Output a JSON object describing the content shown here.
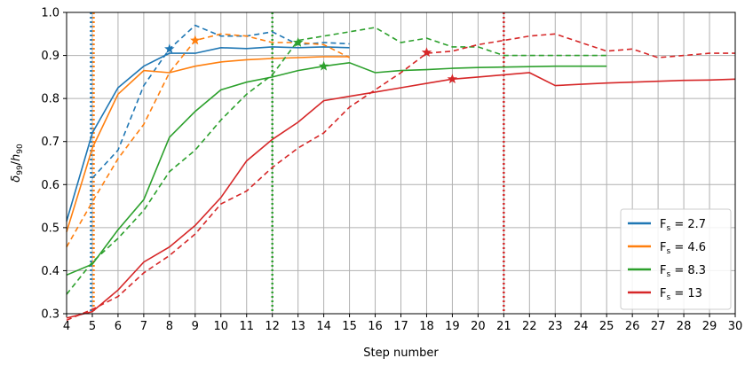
{
  "chart_data": {
    "type": "line",
    "xlabel": "Step number",
    "ylabel_main": "δ",
    "ylabel_sub": "99",
    "ylabel_sep": "/",
    "ylabel_main2": "h",
    "ylabel_sub2": "90",
    "xlim": [
      4,
      30
    ],
    "ylim": [
      0.3,
      1.0
    ],
    "xticks": [
      4,
      5,
      6,
      7,
      8,
      9,
      10,
      11,
      12,
      13,
      14,
      15,
      16,
      17,
      18,
      19,
      20,
      21,
      22,
      23,
      24,
      25,
      26,
      27,
      28,
      29,
      30
    ],
    "yticks": [
      0.3,
      0.4,
      0.5,
      0.6,
      0.7,
      0.8,
      0.9,
      1.0
    ],
    "ytick_labels": [
      "0.3",
      "0.4",
      "0.5",
      "0.6",
      "0.7",
      "0.8",
      "0.9",
      "1.0"
    ],
    "grid": true,
    "legend_position": "lower-right",
    "series": [
      {
        "name": "F_s = 2.7",
        "legend_label": {
          "main": "F",
          "sub": "s",
          "rest": " = 2.7"
        },
        "color": "#1f77b4",
        "solid": {
          "x": [
            4,
            5,
            6,
            7,
            8,
            9,
            10,
            11,
            12,
            13,
            14,
            15
          ],
          "y": [
            0.515,
            0.72,
            0.825,
            0.875,
            0.905,
            0.905,
            0.918,
            0.916,
            0.92,
            0.918,
            0.92,
            0.918
          ]
        },
        "dashed": {
          "x": [
            5,
            6,
            7,
            8,
            9,
            10,
            11,
            12,
            13,
            14,
            15
          ],
          "y": [
            0.615,
            0.68,
            0.83,
            0.915,
            0.97,
            0.945,
            0.945,
            0.955,
            0.925,
            0.93,
            0.927
          ]
        },
        "star": {
          "x": 8,
          "y": 0.915
        },
        "vline": 5
      },
      {
        "name": "F_s = 4.6",
        "legend_label": {
          "main": "F",
          "sub": "s",
          "rest": " = 4.6"
        },
        "color": "#ff7f0e",
        "solid": {
          "x": [
            4,
            5,
            6,
            7,
            8,
            9,
            10,
            11,
            12,
            13,
            14,
            15
          ],
          "y": [
            0.49,
            0.685,
            0.81,
            0.865,
            0.86,
            0.875,
            0.885,
            0.89,
            0.893,
            0.895,
            0.897,
            0.897
          ]
        },
        "dashed": {
          "x": [
            4,
            5,
            6,
            7,
            8,
            9,
            10,
            11,
            12,
            13,
            14,
            15
          ],
          "y": [
            0.455,
            0.56,
            0.66,
            0.74,
            0.86,
            0.935,
            0.95,
            0.945,
            0.93,
            0.93,
            0.925,
            0.895
          ]
        },
        "star": {
          "x": 9,
          "y": 0.935
        },
        "vline": 5
      },
      {
        "name": "F_s = 8.3",
        "legend_label": {
          "main": "F",
          "sub": "s",
          "rest": " = 8.3"
        },
        "color": "#2ca02c",
        "solid": {
          "x": [
            4,
            5,
            6,
            7,
            8,
            9,
            10,
            11,
            12,
            13,
            14,
            15,
            16,
            17,
            18,
            19,
            20,
            21,
            22,
            23,
            24,
            25
          ],
          "y": [
            0.39,
            0.415,
            0.495,
            0.565,
            0.71,
            0.77,
            0.82,
            0.838,
            0.85,
            0.865,
            0.875,
            0.883,
            0.86,
            0.865,
            0.867,
            0.87,
            0.872,
            0.873,
            0.874,
            0.875,
            0.875,
            0.875
          ]
        },
        "dashed": {
          "x": [
            4,
            5,
            6,
            7,
            8,
            9,
            10,
            11,
            12,
            13,
            14,
            15,
            16,
            17,
            18,
            19,
            20,
            21,
            22,
            23,
            24,
            25
          ],
          "y": [
            0.345,
            0.42,
            0.475,
            0.54,
            0.63,
            0.68,
            0.75,
            0.81,
            0.855,
            0.935,
            0.945,
            0.955,
            0.965,
            0.93,
            0.94,
            0.92,
            0.92,
            0.9,
            0.9,
            0.9,
            0.9,
            0.9
          ]
        },
        "star": {
          "x": 14,
          "y": 0.875
        },
        "star2": {
          "x": 13,
          "y": 0.93
        },
        "vline": 12
      },
      {
        "name": "F_s = 13",
        "legend_label": {
          "main": "F",
          "sub": "s",
          "rest": " = 13"
        },
        "color": "#d62728",
        "solid": {
          "x": [
            4,
            5,
            6,
            7,
            8,
            9,
            10,
            11,
            12,
            13,
            14,
            15,
            16,
            17,
            18,
            19,
            20,
            21,
            22,
            23,
            24,
            25,
            26,
            27,
            28,
            29,
            30
          ],
          "y": [
            0.29,
            0.305,
            0.355,
            0.42,
            0.455,
            0.505,
            0.57,
            0.655,
            0.705,
            0.745,
            0.795,
            0.805,
            0.815,
            0.825,
            0.835,
            0.845,
            0.85,
            0.855,
            0.86,
            0.83,
            0.833,
            0.836,
            0.838,
            0.84,
            0.842,
            0.843,
            0.845
          ]
        },
        "dashed": {
          "x": [
            4,
            5,
            6,
            7,
            8,
            9,
            10,
            11,
            12,
            13,
            14,
            15,
            16,
            17,
            18,
            19,
            20,
            21,
            22,
            23,
            24,
            25,
            26,
            27,
            28,
            29,
            30
          ],
          "y": [
            0.285,
            0.31,
            0.34,
            0.395,
            0.435,
            0.485,
            0.555,
            0.585,
            0.64,
            0.685,
            0.72,
            0.78,
            0.82,
            0.86,
            0.905,
            0.91,
            0.925,
            0.935,
            0.945,
            0.95,
            0.93,
            0.91,
            0.915,
            0.895,
            0.9,
            0.905,
            0.905
          ]
        },
        "star": {
          "x": 19,
          "y": 0.845
        },
        "star2": {
          "x": 18,
          "y": 0.907
        },
        "vline": 21
      }
    ]
  }
}
